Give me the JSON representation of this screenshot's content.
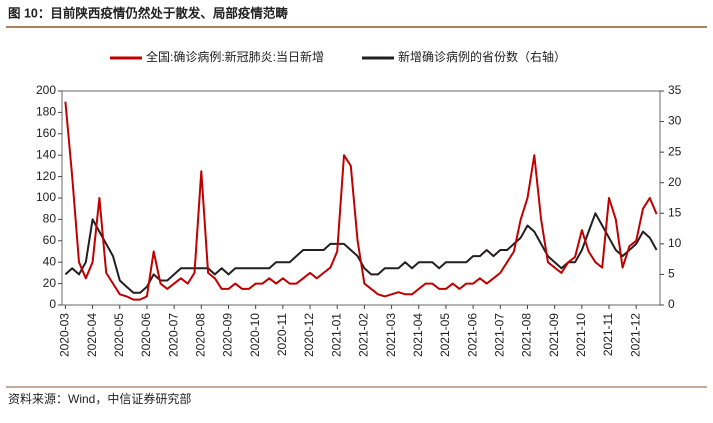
{
  "chart_data": {
    "type": "line",
    "title": "图 10：目前陕西疫情仍然处于散发、局部疫情范畴",
    "source": "资料来源：Wind，中信证券研究部",
    "categories": [
      "2020-03",
      null,
      null,
      null,
      "2020-04",
      null,
      null,
      null,
      "2020-05",
      null,
      null,
      null,
      "2020-06",
      null,
      null,
      null,
      "2020-07",
      null,
      null,
      null,
      "2020-08",
      null,
      null,
      null,
      "2020-09",
      null,
      null,
      null,
      "2020-10",
      null,
      null,
      null,
      "2020-11",
      null,
      null,
      null,
      "2020-12",
      null,
      null,
      null,
      "2021-01",
      null,
      null,
      null,
      "2021-02",
      null,
      null,
      null,
      "2021-03",
      null,
      null,
      null,
      "2021-04",
      null,
      null,
      null,
      "2021-05",
      null,
      null,
      null,
      "2021-06",
      null,
      null,
      null,
      "2021-07",
      null,
      null,
      null,
      "2021-08",
      null,
      null,
      null,
      "2021-09",
      null,
      null,
      null,
      "2021-10",
      null,
      null,
      null,
      "2021-11",
      null,
      null,
      null,
      "2021-12",
      null,
      null,
      null
    ],
    "series": [
      {
        "name": "全国:确诊病例:新冠肺炎:当日新增",
        "color": "#c00000",
        "values": [
          190,
          120,
          40,
          25,
          40,
          100,
          30,
          20,
          10,
          8,
          5,
          5,
          8,
          50,
          20,
          15,
          20,
          25,
          20,
          30,
          125,
          30,
          25,
          15,
          15,
          20,
          15,
          15,
          20,
          20,
          25,
          20,
          25,
          20,
          20,
          25,
          30,
          25,
          30,
          35,
          50,
          140,
          130,
          60,
          20,
          15,
          10,
          8,
          10,
          12,
          10,
          10,
          15,
          20,
          20,
          15,
          15,
          20,
          15,
          20,
          20,
          25,
          20,
          25,
          30,
          40,
          50,
          80,
          100,
          140,
          80,
          40,
          35,
          30,
          40,
          45,
          70,
          50,
          40,
          35,
          100,
          80,
          35,
          55,
          60,
          90,
          100,
          85
        ]
      },
      {
        "name": "新增确诊病例的省份数（右轴）",
        "color": "#231f20",
        "axis": "y2",
        "values": [
          5,
          6,
          5,
          7,
          14,
          12,
          10,
          8,
          4,
          3,
          2,
          2,
          3,
          5,
          4,
          4,
          5,
          6,
          6,
          6,
          6,
          6,
          5,
          6,
          5,
          6,
          6,
          6,
          6,
          6,
          6,
          7,
          7,
          7,
          8,
          9,
          9,
          9,
          9,
          10,
          10,
          10,
          9,
          8,
          6,
          5,
          5,
          6,
          6,
          6,
          7,
          6,
          7,
          7,
          7,
          6,
          7,
          7,
          7,
          7,
          8,
          8,
          9,
          8,
          9,
          9,
          10,
          11,
          13,
          12,
          10,
          8,
          7,
          6,
          7,
          7,
          9,
          12,
          15,
          13,
          11,
          9,
          8,
          9,
          10,
          12,
          11,
          9
        ]
      }
    ],
    "ylim": [
      0,
      200
    ],
    "yticks": [
      0,
      20,
      40,
      60,
      80,
      100,
      120,
      140,
      160,
      180,
      200
    ],
    "y2lim": [
      0,
      35
    ],
    "y2ticks": [
      0,
      5,
      10,
      15,
      20,
      25,
      30,
      35
    ],
    "grid": false
  }
}
